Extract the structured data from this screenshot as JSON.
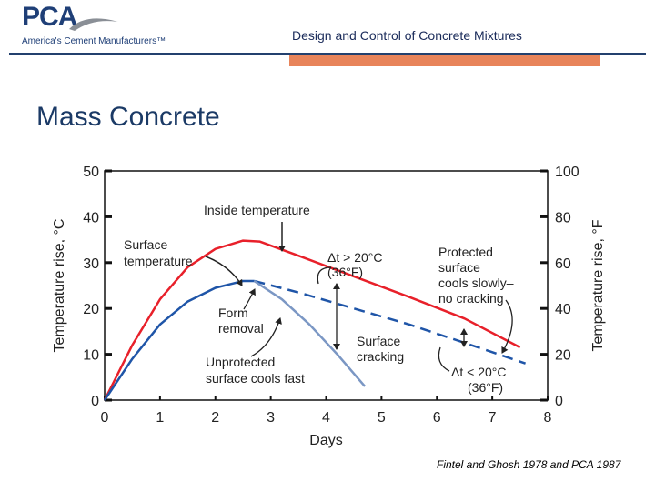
{
  "header": {
    "logo_text": "PCA",
    "logo_tagline": "America's Cement Manufacturers™",
    "title": "Design and Control of Concrete Mixtures"
  },
  "slide": {
    "title": "Mass Concrete",
    "citation": "Fintel and Ghosh 1978 and PCA 1987"
  },
  "colors": {
    "inside": "#e8202a",
    "surface": "#1f55a8",
    "unprotected": "#7b97c4",
    "header_rule": "#23406e",
    "header_accent": "#e8845a"
  },
  "chart_data": {
    "type": "line",
    "xlabel": "Days",
    "ylabel_left": "Temperature rise, °C",
    "ylabel_right": "Temperature rise, °F",
    "xlim": [
      0,
      8
    ],
    "ylim_left": [
      0,
      50
    ],
    "ylim_right": [
      0,
      100
    ],
    "x_ticks": [
      "0",
      "1",
      "2",
      "3",
      "4",
      "5",
      "6",
      "7",
      "8"
    ],
    "y_ticks_left": [
      "0",
      "10",
      "20",
      "30",
      "40",
      "50"
    ],
    "y_ticks_right": [
      "0",
      "20",
      "40",
      "60",
      "80",
      "100"
    ],
    "series": [
      {
        "name": "Inside temperature",
        "style": "solid",
        "x": [
          0,
          0.5,
          1,
          1.5,
          2,
          2.5,
          2.8,
          3.5,
          4.5,
          5.5,
          6.5,
          7.5
        ],
        "y": [
          0,
          12,
          22,
          29,
          33,
          34.8,
          34.6,
          31.5,
          27,
          22.5,
          17.8,
          11.5
        ]
      },
      {
        "name": "Surface temperature",
        "style": "solid",
        "x": [
          0,
          0.5,
          1,
          1.5,
          2,
          2.5,
          2.7
        ],
        "y": [
          0,
          9,
          16.5,
          21.5,
          24.5,
          26,
          26
        ]
      },
      {
        "name": "Surface temperature (protected)",
        "style": "dashed",
        "x": [
          2.7,
          3.5,
          4.5,
          5.5,
          6.5,
          7.6
        ],
        "y": [
          26,
          23.5,
          20,
          16.5,
          12.5,
          8
        ]
      },
      {
        "name": "Unprotected surface",
        "style": "solid",
        "x": [
          2.7,
          3.2,
          3.7,
          4.2,
          4.7
        ],
        "y": [
          26,
          22,
          16.5,
          10,
          3
        ]
      }
    ],
    "annotations": [
      {
        "text": "Inside temperature"
      },
      {
        "text": "Surface temperature"
      },
      {
        "text": "Δt > 20°C (36°F)"
      },
      {
        "text": "Protected surface cools slowly– no cracking"
      },
      {
        "text": "Form removal"
      },
      {
        "text": "Surface cracking"
      },
      {
        "text": "Unprotected surface cools fast"
      },
      {
        "text": "Δt < 20°C (36°F)"
      }
    ]
  }
}
